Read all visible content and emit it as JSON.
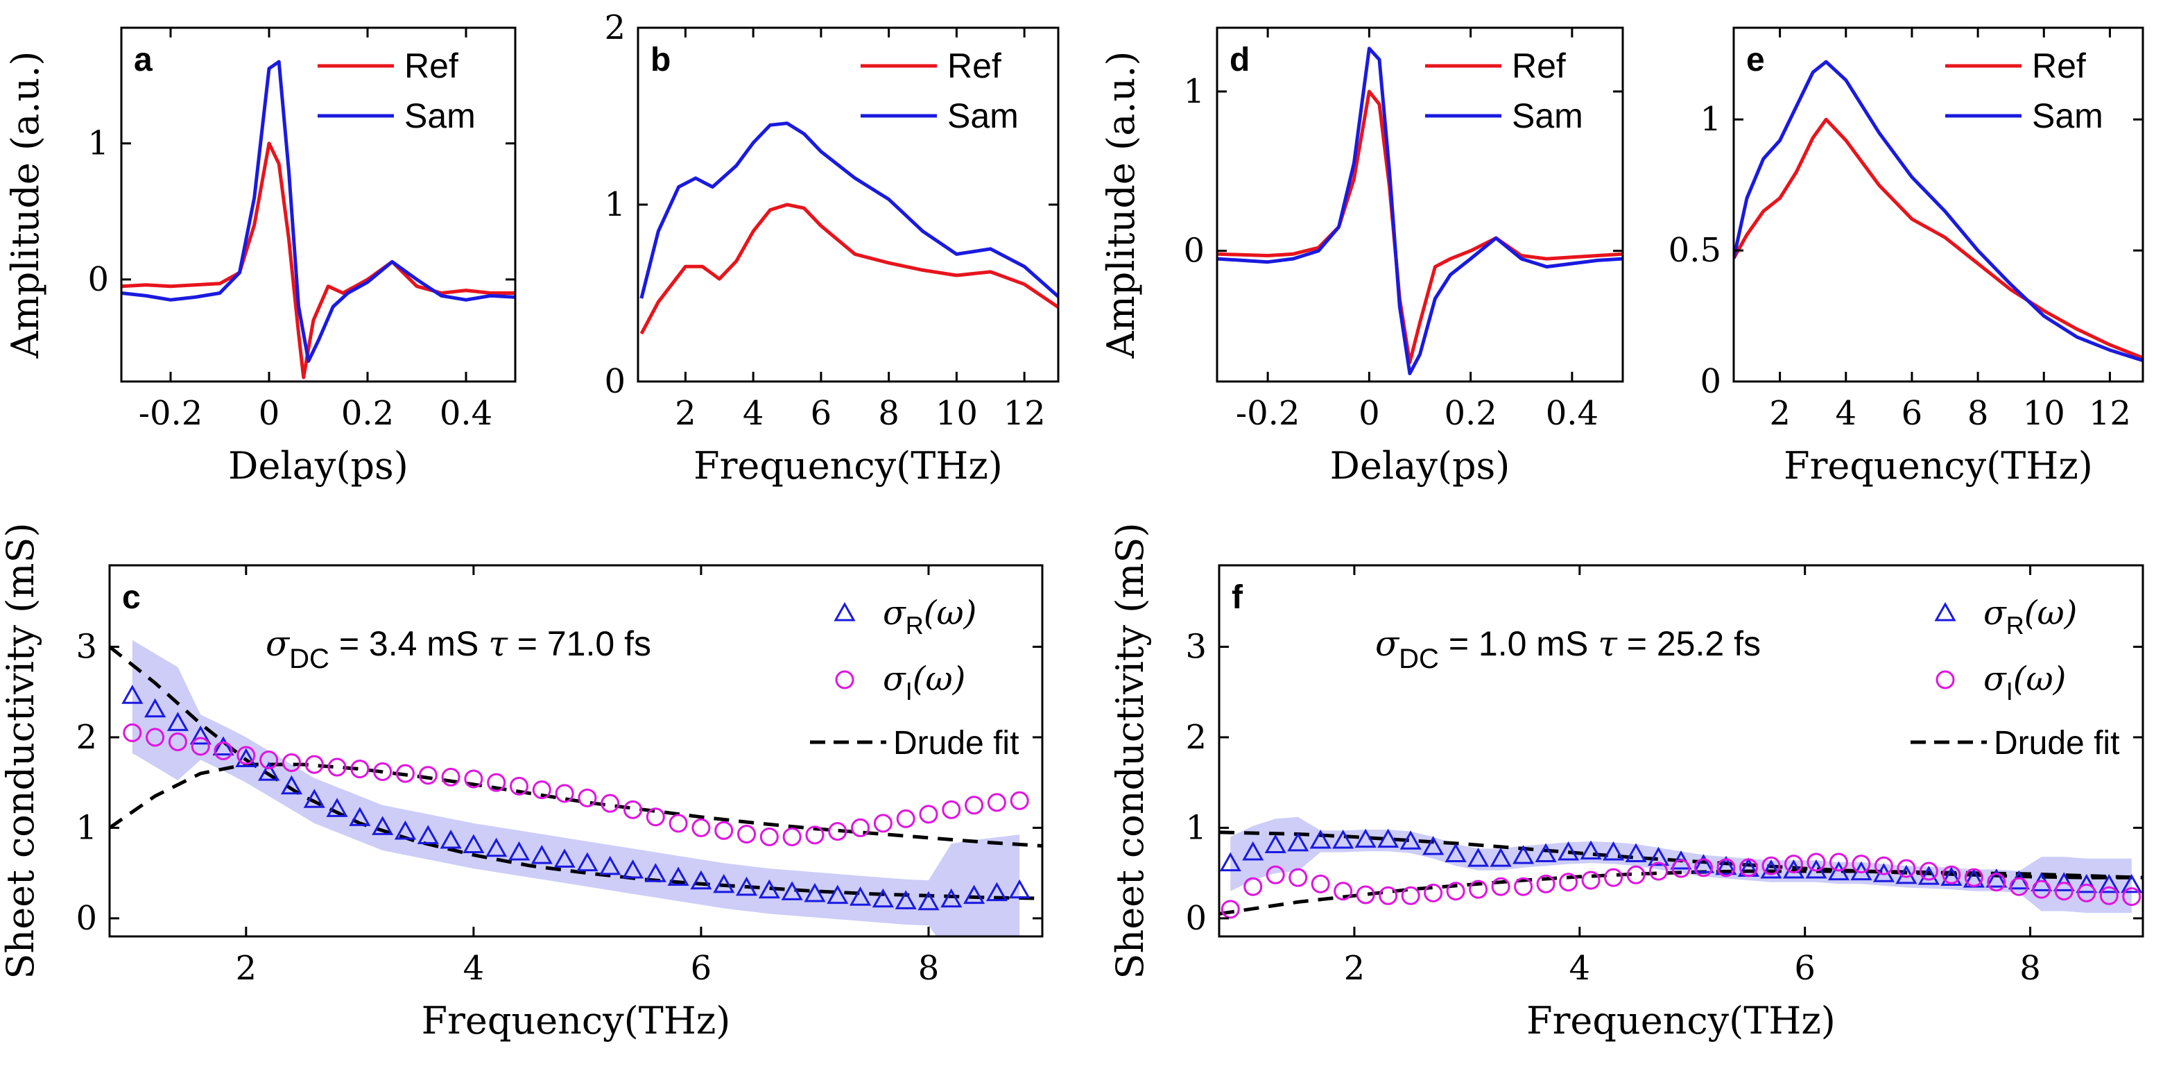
{
  "colors": {
    "ref": "#e8141c",
    "sam": "#1a1ae0",
    "sigma_i": "#e014e0",
    "fit": "#000000",
    "axis": "#000000"
  },
  "chart_data": [
    {
      "id": "a",
      "type": "line",
      "panel_label": "a",
      "xlabel": "Delay(ps)",
      "ylabel": "Amplitude (a.u.)",
      "xlim": [
        -0.3,
        0.5
      ],
      "ylim": [
        -0.75,
        1.85
      ],
      "xticks": [
        -0.2,
        0,
        0.2,
        0.4
      ],
      "xtick_labels": [
        "-0.2",
        "0",
        "0.2",
        "0.4"
      ],
      "yticks": [
        0,
        1
      ],
      "ytick_labels": [
        "0",
        "1"
      ],
      "legend": [
        "Ref",
        "Sam"
      ],
      "legend_position": "top-right",
      "series": [
        {
          "name": "Ref",
          "color": "ref",
          "x": [
            -0.3,
            -0.25,
            -0.2,
            -0.15,
            -0.1,
            -0.06,
            -0.03,
            0,
            0.02,
            0.04,
            0.06,
            0.07,
            0.09,
            0.12,
            0.15,
            0.2,
            0.25,
            0.3,
            0.35,
            0.4,
            0.45,
            0.5
          ],
          "y": [
            -0.05,
            -0.04,
            -0.05,
            -0.04,
            -0.03,
            0.05,
            0.4,
            1.0,
            0.85,
            0.3,
            -0.4,
            -0.72,
            -0.3,
            -0.05,
            -0.1,
            0.0,
            0.13,
            -0.05,
            -0.1,
            -0.08,
            -0.1,
            -0.1
          ]
        },
        {
          "name": "Sam",
          "color": "sam",
          "x": [
            -0.3,
            -0.25,
            -0.2,
            -0.15,
            -0.1,
            -0.06,
            -0.03,
            0,
            0.02,
            0.04,
            0.06,
            0.08,
            0.1,
            0.13,
            0.16,
            0.2,
            0.25,
            0.3,
            0.35,
            0.4,
            0.45,
            0.5
          ],
          "y": [
            -0.1,
            -0.12,
            -0.15,
            -0.13,
            -0.1,
            0.05,
            0.6,
            1.55,
            1.6,
            0.8,
            -0.2,
            -0.6,
            -0.45,
            -0.2,
            -0.1,
            -0.02,
            0.13,
            0.0,
            -0.12,
            -0.15,
            -0.12,
            -0.13
          ]
        }
      ]
    },
    {
      "id": "b",
      "type": "line",
      "panel_label": "b",
      "xlabel": "Frequency(THz)",
      "ylabel": "",
      "xlim": [
        0.6,
        13
      ],
      "ylim": [
        0,
        2
      ],
      "xticks": [
        2,
        4,
        6,
        8,
        10,
        12
      ],
      "xtick_labels": [
        "2",
        "4",
        "6",
        "8",
        "10",
        "12"
      ],
      "yticks": [
        0,
        1,
        2
      ],
      "ytick_labels": [
        "0",
        "1",
        "2"
      ],
      "legend": [
        "Ref",
        "Sam"
      ],
      "legend_position": "top-right",
      "series": [
        {
          "name": "Ref",
          "color": "ref",
          "x": [
            0.7,
            1.2,
            2,
            2.5,
            3,
            3.5,
            4,
            4.5,
            5,
            5.5,
            6,
            7,
            8,
            9,
            10,
            11,
            12,
            13
          ],
          "y": [
            0.27,
            0.45,
            0.65,
            0.65,
            0.58,
            0.68,
            0.85,
            0.97,
            1.0,
            0.98,
            0.88,
            0.72,
            0.67,
            0.63,
            0.6,
            0.62,
            0.55,
            0.42
          ]
        },
        {
          "name": "Sam",
          "color": "sam",
          "x": [
            0.7,
            1.2,
            1.8,
            2.3,
            2.8,
            3.5,
            4,
            4.5,
            5,
            5.5,
            6,
            7,
            8,
            9,
            10,
            11,
            12,
            13
          ],
          "y": [
            0.47,
            0.85,
            1.1,
            1.15,
            1.1,
            1.22,
            1.35,
            1.45,
            1.46,
            1.4,
            1.3,
            1.15,
            1.03,
            0.85,
            0.72,
            0.75,
            0.65,
            0.48
          ]
        }
      ]
    },
    {
      "id": "c",
      "type": "scatter",
      "panel_label": "c",
      "xlabel": "Frequency(THz)",
      "ylabel": "Sheet conductivity (mS)",
      "xlim": [
        0.8,
        9
      ],
      "ylim": [
        -0.2,
        3.9
      ],
      "xticks": [
        2,
        4,
        6,
        8
      ],
      "xtick_labels": [
        "2",
        "4",
        "6",
        "8"
      ],
      "yticks": [
        0,
        1,
        2,
        3
      ],
      "ytick_labels": [
        "0",
        "1",
        "2",
        "3"
      ],
      "annotation": {
        "sigma": "σ",
        "sub": "DC",
        "text": " = 3.4 mS  ",
        "tau": "τ",
        "tau_text": " = 71.0 fs"
      },
      "legend": {
        "sr_sym": "σ",
        "sr_sub": "R",
        "sr_arg": "(ω)",
        "si_sym": "σ",
        "si_sub": "I",
        "si_arg": "(ω)",
        "fit": "Drude fit"
      },
      "sigma_r": {
        "x": [
          1.0,
          1.2,
          1.4,
          1.6,
          1.8,
          2.0,
          2.2,
          2.4,
          2.6,
          2.8,
          3.0,
          3.2,
          3.4,
          3.6,
          3.8,
          4.0,
          4.2,
          4.4,
          4.6,
          4.8,
          5.0,
          5.2,
          5.4,
          5.6,
          5.8,
          6.0,
          6.2,
          6.4,
          6.6,
          6.8,
          7.0,
          7.2,
          7.4,
          7.6,
          7.8,
          8.0,
          8.2,
          8.4,
          8.6,
          8.8
        ],
        "y": [
          2.45,
          2.3,
          2.15,
          2.0,
          1.88,
          1.75,
          1.6,
          1.45,
          1.3,
          1.2,
          1.1,
          1.0,
          0.95,
          0.9,
          0.85,
          0.8,
          0.76,
          0.72,
          0.68,
          0.64,
          0.6,
          0.56,
          0.52,
          0.48,
          0.44,
          0.4,
          0.36,
          0.33,
          0.3,
          0.28,
          0.26,
          0.24,
          0.22,
          0.2,
          0.18,
          0.17,
          0.2,
          0.24,
          0.27,
          0.3
        ]
      },
      "sigma_i": {
        "x": [
          1.0,
          1.2,
          1.4,
          1.6,
          1.8,
          2.0,
          2.2,
          2.4,
          2.6,
          2.8,
          3.0,
          3.2,
          3.4,
          3.6,
          3.8,
          4.0,
          4.2,
          4.4,
          4.6,
          4.8,
          5.0,
          5.2,
          5.4,
          5.6,
          5.8,
          6.0,
          6.2,
          6.4,
          6.6,
          6.8,
          7.0,
          7.2,
          7.4,
          7.6,
          7.8,
          8.0,
          8.2,
          8.4,
          8.6,
          8.8
        ],
        "y": [
          2.05,
          2.0,
          1.95,
          1.9,
          1.85,
          1.8,
          1.75,
          1.72,
          1.7,
          1.67,
          1.65,
          1.62,
          1.6,
          1.58,
          1.56,
          1.54,
          1.5,
          1.46,
          1.42,
          1.38,
          1.33,
          1.27,
          1.2,
          1.12,
          1.05,
          1.0,
          0.97,
          0.93,
          0.9,
          0.9,
          0.92,
          0.96,
          1.0,
          1.05,
          1.1,
          1.15,
          1.2,
          1.25,
          1.28,
          1.3
        ]
      },
      "fit_r": {
        "x": [
          0.8,
          1.2,
          1.6,
          2.0,
          2.5,
          3.0,
          3.5,
          4.0,
          4.5,
          5.0,
          5.5,
          6.0,
          6.5,
          7.0,
          7.5,
          8.0,
          8.5,
          9.0
        ],
        "y": [
          3.0,
          2.6,
          2.15,
          1.75,
          1.35,
          1.05,
          0.85,
          0.7,
          0.58,
          0.5,
          0.43,
          0.38,
          0.34,
          0.3,
          0.27,
          0.25,
          0.23,
          0.22
        ]
      },
      "fit_i": {
        "x": [
          0.8,
          1.2,
          1.6,
          2.0,
          2.5,
          3.0,
          3.5,
          4.0,
          4.5,
          5.0,
          5.5,
          6.0,
          6.5,
          7.0,
          7.5,
          8.0,
          8.5,
          9.0
        ],
        "y": [
          1.0,
          1.35,
          1.6,
          1.7,
          1.7,
          1.65,
          1.57,
          1.48,
          1.38,
          1.28,
          1.2,
          1.12,
          1.05,
          0.99,
          0.94,
          0.89,
          0.84,
          0.8
        ]
      }
    },
    {
      "id": "d",
      "type": "line",
      "panel_label": "d",
      "xlabel": "Delay(ps)",
      "ylabel": "Amplitude (a.u.)",
      "xlim": [
        -0.3,
        0.5
      ],
      "ylim": [
        -0.82,
        1.4
      ],
      "xticks": [
        -0.2,
        0,
        0.2,
        0.4
      ],
      "xtick_labels": [
        "-0.2",
        "0",
        "0.2",
        "0.4"
      ],
      "yticks": [
        0,
        1
      ],
      "ytick_labels": [
        "0",
        "1"
      ],
      "legend": [
        "Ref",
        "Sam"
      ],
      "legend_position": "top-right",
      "series": [
        {
          "name": "Ref",
          "color": "ref",
          "x": [
            -0.3,
            -0.2,
            -0.15,
            -0.1,
            -0.06,
            -0.03,
            0,
            0.02,
            0.04,
            0.06,
            0.08,
            0.1,
            0.13,
            0.16,
            0.2,
            0.25,
            0.3,
            0.35,
            0.4,
            0.45,
            0.5
          ],
          "y": [
            -0.02,
            -0.03,
            -0.02,
            0.02,
            0.15,
            0.45,
            1.0,
            0.92,
            0.4,
            -0.3,
            -0.7,
            -0.45,
            -0.1,
            -0.05,
            0.0,
            0.08,
            -0.03,
            -0.05,
            -0.04,
            -0.03,
            -0.02
          ]
        },
        {
          "name": "Sam",
          "color": "sam",
          "x": [
            -0.3,
            -0.2,
            -0.15,
            -0.1,
            -0.06,
            -0.03,
            0,
            0.02,
            0.04,
            0.06,
            0.08,
            0.1,
            0.13,
            0.16,
            0.2,
            0.25,
            0.3,
            0.35,
            0.4,
            0.45,
            0.5
          ],
          "y": [
            -0.05,
            -0.07,
            -0.05,
            0.0,
            0.15,
            0.55,
            1.27,
            1.2,
            0.5,
            -0.35,
            -0.77,
            -0.65,
            -0.3,
            -0.15,
            -0.05,
            0.08,
            -0.05,
            -0.1,
            -0.08,
            -0.06,
            -0.05
          ]
        }
      ]
    },
    {
      "id": "e",
      "type": "line",
      "panel_label": "e",
      "xlabel": "Frequency(THz)",
      "ylabel": "",
      "xlim": [
        0.6,
        13
      ],
      "ylim": [
        0,
        1.35
      ],
      "xticks": [
        2,
        4,
        6,
        8,
        10,
        12
      ],
      "xtick_labels": [
        "2",
        "4",
        "6",
        "8",
        "10",
        "12"
      ],
      "yticks": [
        0,
        0.5,
        1
      ],
      "ytick_labels": [
        "0",
        "0.5",
        "1"
      ],
      "legend": [
        "Ref",
        "Sam"
      ],
      "legend_position": "top-right",
      "series": [
        {
          "name": "Ref",
          "color": "ref",
          "x": [
            0.6,
            1.0,
            1.5,
            2.0,
            2.5,
            3.0,
            3.4,
            4.0,
            5.0,
            6.0,
            7.0,
            8.0,
            9.0,
            10.0,
            11.0,
            12.0,
            13.0
          ],
          "y": [
            0.47,
            0.56,
            0.65,
            0.7,
            0.8,
            0.93,
            1.0,
            0.92,
            0.75,
            0.62,
            0.55,
            0.45,
            0.35,
            0.27,
            0.2,
            0.14,
            0.09
          ]
        },
        {
          "name": "Sam",
          "color": "sam",
          "x": [
            0.6,
            1.0,
            1.5,
            2.0,
            2.5,
            3.0,
            3.4,
            4.0,
            5.0,
            6.0,
            7.0,
            8.0,
            9.0,
            10.0,
            11.0,
            12.0,
            13.0
          ],
          "y": [
            0.47,
            0.7,
            0.85,
            0.92,
            1.05,
            1.18,
            1.22,
            1.15,
            0.95,
            0.78,
            0.65,
            0.5,
            0.37,
            0.25,
            0.17,
            0.12,
            0.08
          ]
        }
      ]
    },
    {
      "id": "f",
      "type": "scatter",
      "panel_label": "f",
      "xlabel": "Frequency(THz)",
      "ylabel": "Sheet conductivity (mS)",
      "xlim": [
        0.8,
        9
      ],
      "ylim": [
        -0.2,
        3.9
      ],
      "xticks": [
        2,
        4,
        6,
        8
      ],
      "xtick_labels": [
        "2",
        "4",
        "6",
        "8"
      ],
      "yticks": [
        0,
        1,
        2,
        3
      ],
      "ytick_labels": [
        "0",
        "1",
        "2",
        "3"
      ],
      "annotation": {
        "sigma": "σ",
        "sub": "DC",
        "text": " = 1.0 mS  ",
        "tau": "τ",
        "tau_text": " = 25.2 fs"
      },
      "legend": {
        "sr_sym": "σ",
        "sr_sub": "R",
        "sr_arg": "(ω)",
        "si_sym": "σ",
        "si_sub": "I",
        "si_arg": "(ω)",
        "fit": "Drude fit"
      },
      "sigma_r": {
        "x": [
          0.9,
          1.1,
          1.3,
          1.5,
          1.7,
          1.9,
          2.1,
          2.3,
          2.5,
          2.7,
          2.9,
          3.1,
          3.3,
          3.5,
          3.7,
          3.9,
          4.1,
          4.3,
          4.5,
          4.7,
          4.9,
          5.1,
          5.3,
          5.5,
          5.7,
          5.9,
          6.1,
          6.3,
          6.5,
          6.7,
          6.9,
          7.1,
          7.3,
          7.5,
          7.7,
          7.9,
          8.1,
          8.3,
          8.5,
          8.7,
          8.9
        ],
        "y": [
          0.6,
          0.72,
          0.8,
          0.82,
          0.85,
          0.85,
          0.86,
          0.86,
          0.84,
          0.78,
          0.7,
          0.65,
          0.65,
          0.68,
          0.7,
          0.72,
          0.73,
          0.72,
          0.7,
          0.66,
          0.62,
          0.58,
          0.56,
          0.54,
          0.52,
          0.52,
          0.52,
          0.5,
          0.5,
          0.48,
          0.46,
          0.45,
          0.44,
          0.42,
          0.42,
          0.4,
          0.38,
          0.38,
          0.36,
          0.36,
          0.36
        ]
      },
      "sigma_i": {
        "x": [
          0.9,
          1.1,
          1.3,
          1.5,
          1.7,
          1.9,
          2.1,
          2.3,
          2.5,
          2.7,
          2.9,
          3.1,
          3.3,
          3.5,
          3.7,
          3.9,
          4.1,
          4.3,
          4.5,
          4.7,
          4.9,
          5.1,
          5.3,
          5.5,
          5.7,
          5.9,
          6.1,
          6.3,
          6.5,
          6.7,
          6.9,
          7.1,
          7.3,
          7.5,
          7.7,
          7.9,
          8.1,
          8.3,
          8.5,
          8.7,
          8.9
        ],
        "y": [
          0.1,
          0.35,
          0.48,
          0.45,
          0.38,
          0.3,
          0.26,
          0.25,
          0.25,
          0.28,
          0.3,
          0.32,
          0.35,
          0.35,
          0.38,
          0.4,
          0.42,
          0.45,
          0.48,
          0.52,
          0.55,
          0.56,
          0.56,
          0.56,
          0.58,
          0.6,
          0.62,
          0.62,
          0.6,
          0.58,
          0.55,
          0.52,
          0.48,
          0.45,
          0.4,
          0.35,
          0.32,
          0.3,
          0.28,
          0.25,
          0.24
        ]
      },
      "fit_r": {
        "x": [
          0.8,
          1.5,
          2.0,
          2.5,
          3.0,
          3.5,
          4.0,
          4.5,
          5.0,
          5.5,
          6.0,
          6.5,
          7.0,
          7.5,
          8.0,
          8.5,
          9.0
        ],
        "y": [
          0.95,
          0.93,
          0.9,
          0.86,
          0.82,
          0.77,
          0.72,
          0.67,
          0.63,
          0.59,
          0.55,
          0.52,
          0.5,
          0.48,
          0.46,
          0.45,
          0.45
        ]
      },
      "fit_i": {
        "x": [
          0.8,
          1.5,
          2.0,
          2.5,
          3.0,
          3.5,
          4.0,
          4.5,
          5.0,
          5.5,
          6.0,
          6.5,
          7.0,
          7.5,
          8.0,
          8.5,
          9.0
        ],
        "y": [
          0.05,
          0.18,
          0.25,
          0.32,
          0.37,
          0.42,
          0.46,
          0.49,
          0.51,
          0.52,
          0.52,
          0.52,
          0.51,
          0.5,
          0.49,
          0.47,
          0.45
        ]
      }
    }
  ]
}
